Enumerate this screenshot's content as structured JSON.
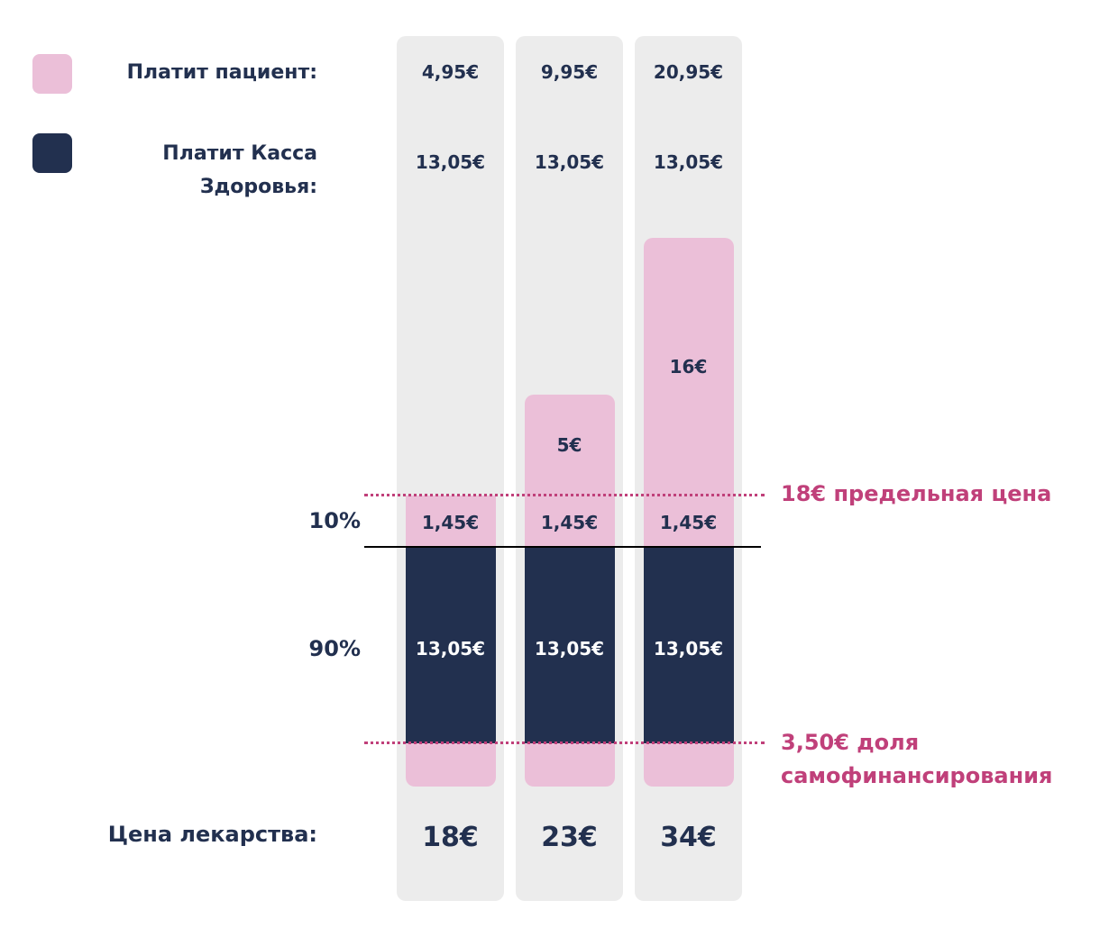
{
  "legend": [
    {
      "label": "Платит пациент:"
    },
    {
      "label": "Платит Касса Здоровья:"
    }
  ],
  "row_labels": {
    "coinsurance": "10%",
    "fund": "90%",
    "price": "Цена лекарства:"
  },
  "columns": [
    {
      "patient_total": "4,95€",
      "fund_total": "13,05€",
      "coinsurance": "1,45€",
      "fund": "13,05€",
      "price": "18€"
    },
    {
      "patient_total": "9,95€",
      "fund_total": "13,05€",
      "extra": "5€",
      "coinsurance": "1,45€",
      "fund": "13,05€",
      "price": "23€"
    },
    {
      "patient_total": "20,95€",
      "fund_total": "13,05€",
      "extra": "16€",
      "coinsurance": "1,45€",
      "fund": "13,05€",
      "price": "34€"
    }
  ],
  "annotations": {
    "limit": "18€ предельная цена",
    "self_share": "3,50€ доля самофинансирования"
  }
}
